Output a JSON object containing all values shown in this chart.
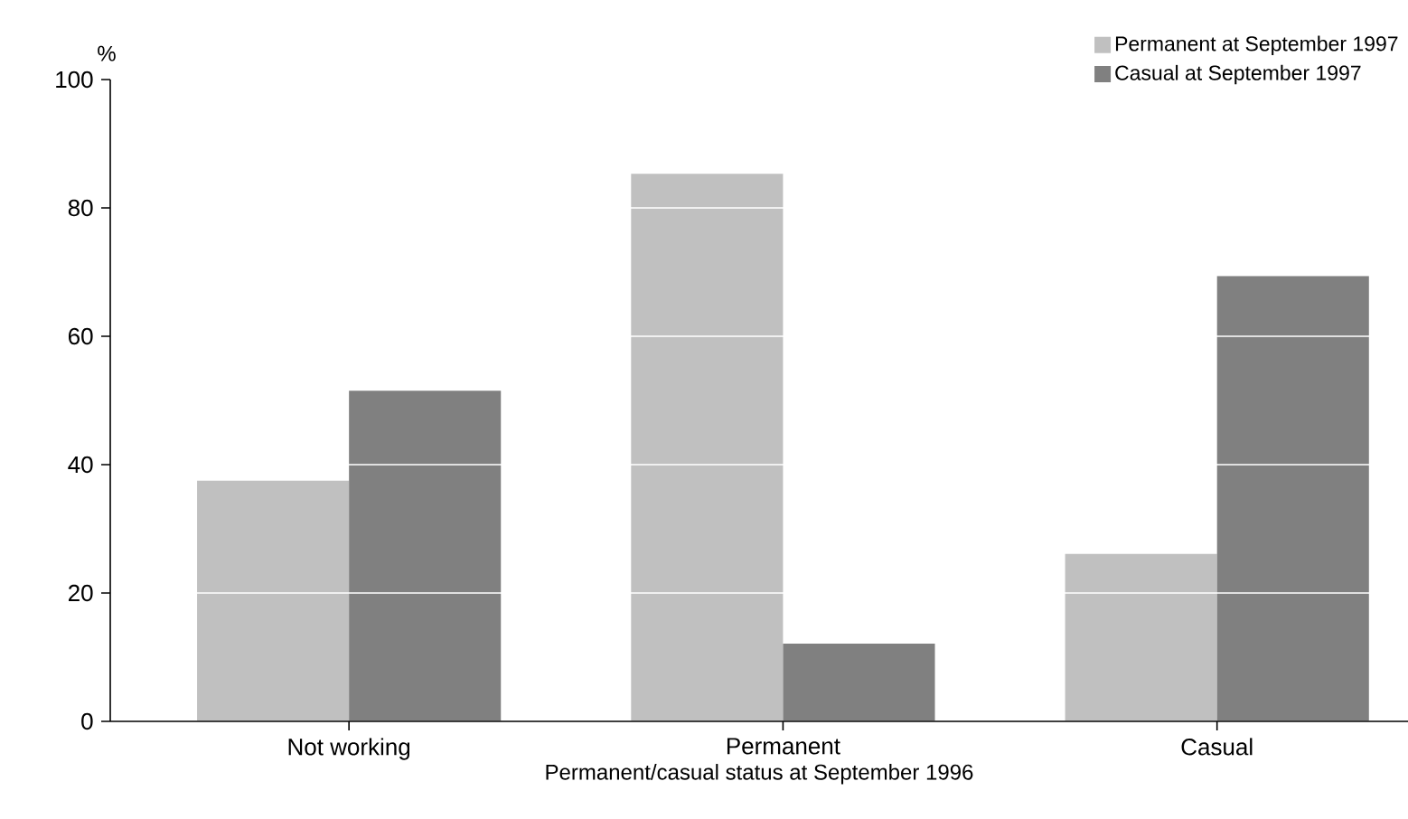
{
  "chart_data": {
    "type": "bar",
    "categories": [
      "Not working",
      "Permanent",
      "Casual"
    ],
    "xlabel": "Permanent/casual status at September 1996",
    "ylabel": "%",
    "series": [
      {
        "name": "Permanent at September 1997",
        "color": "#c0c0c0",
        "values": [
          37.5,
          85.3,
          26.1
        ]
      },
      {
        "name": "Casual at September 1997",
        "color": "#808080",
        "values": [
          51.5,
          12.1,
          69.4
        ]
      }
    ],
    "ylim": [
      0,
      100
    ],
    "yticks": [
      0,
      20,
      40,
      60,
      80,
      100
    ],
    "grid": "y",
    "legend": "top right"
  }
}
